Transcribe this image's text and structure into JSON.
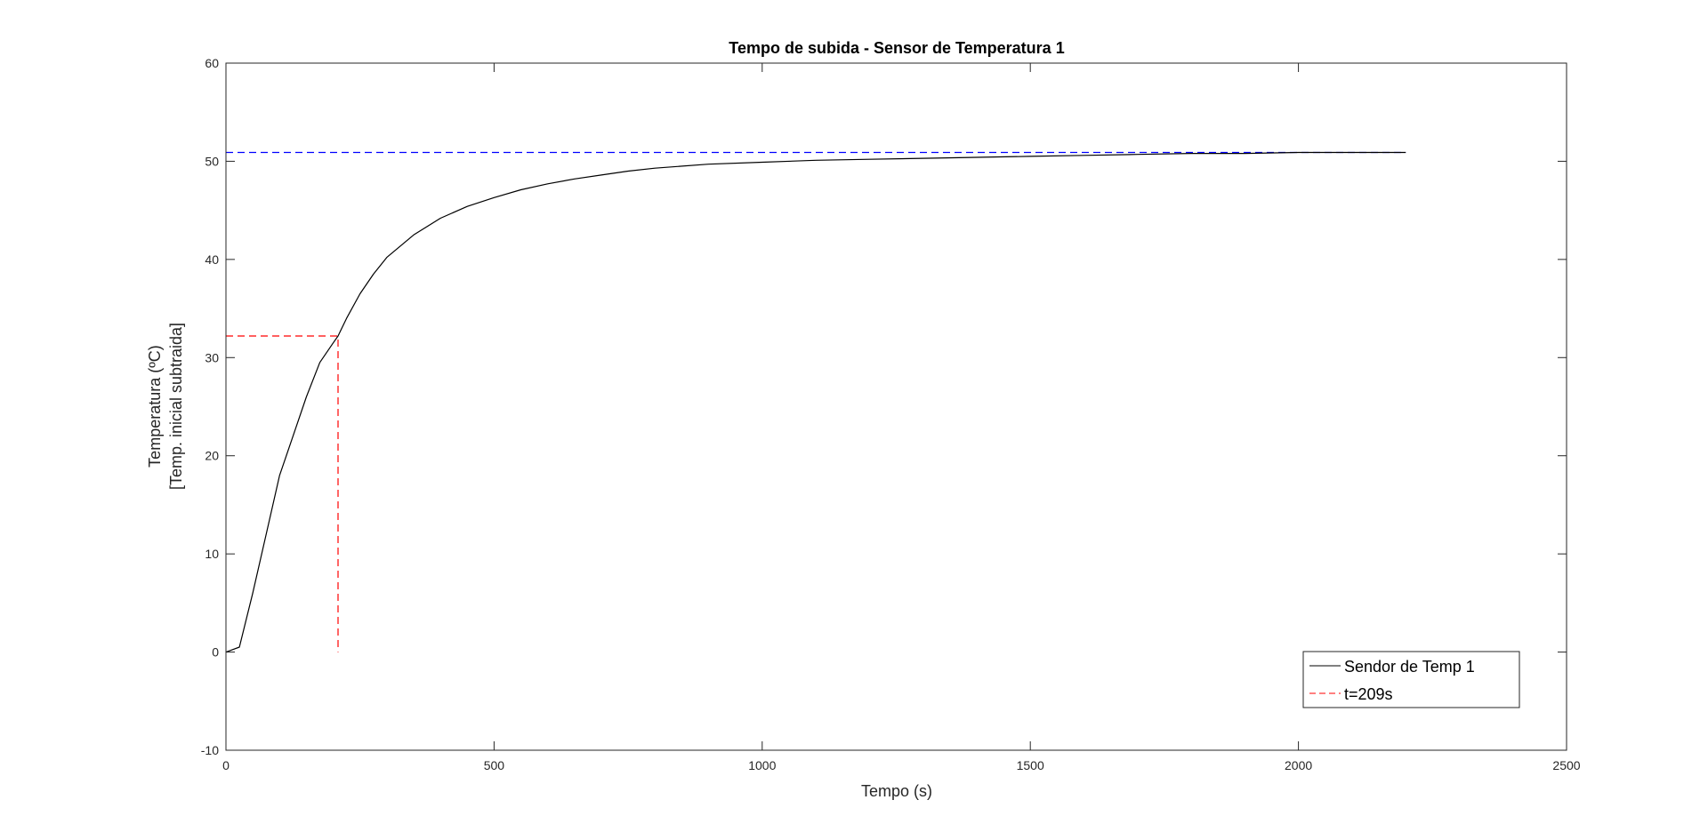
{
  "chart_data": {
    "type": "line",
    "title": "Tempo de subida - Sensor de Temperatura 1",
    "xlabel": "Tempo (s)",
    "ylabel": [
      "Temperatura (ºC)",
      "[Temp. inicial subtraida]"
    ],
    "xlim": [
      0,
      2500
    ],
    "ylim": [
      -10,
      60
    ],
    "xticks": [
      0,
      500,
      1000,
      1500,
      2000,
      2500
    ],
    "yticks": [
      -10,
      0,
      10,
      20,
      30,
      40,
      50,
      60
    ],
    "grid": false,
    "legend_position": "bottom-right",
    "series": [
      {
        "name": "Sendor de Temp 1",
        "color": "#000000",
        "style": "solid",
        "x": [
          0,
          25,
          50,
          75,
          100,
          125,
          150,
          175,
          200,
          209,
          225,
          250,
          275,
          300,
          350,
          400,
          450,
          500,
          550,
          600,
          650,
          700,
          750,
          800,
          900,
          1000,
          1100,
          1200,
          1300,
          1400,
          1500,
          1600,
          1700,
          1800,
          1900,
          2000,
          2100,
          2200
        ],
        "y": [
          0,
          0.5,
          6,
          12,
          18,
          22,
          26,
          29.5,
          31.5,
          32.2,
          34,
          36.5,
          38.5,
          40.2,
          42.5,
          44.2,
          45.4,
          46.3,
          47.1,
          47.7,
          48.2,
          48.6,
          49.0,
          49.3,
          49.7,
          49.9,
          50.1,
          50.2,
          50.3,
          50.4,
          50.5,
          50.6,
          50.7,
          50.8,
          50.8,
          50.9,
          50.9,
          50.9
        ]
      },
      {
        "name": "t=209s",
        "color": "#ff0000",
        "style": "dashed",
        "x": [
          0,
          209,
          209
        ],
        "y": [
          32.2,
          32.2,
          0
        ]
      },
      {
        "name": "",
        "color": "#0000ff",
        "style": "dashed",
        "x": [
          0,
          2200
        ],
        "y": [
          50.9,
          50.9
        ]
      }
    ]
  }
}
